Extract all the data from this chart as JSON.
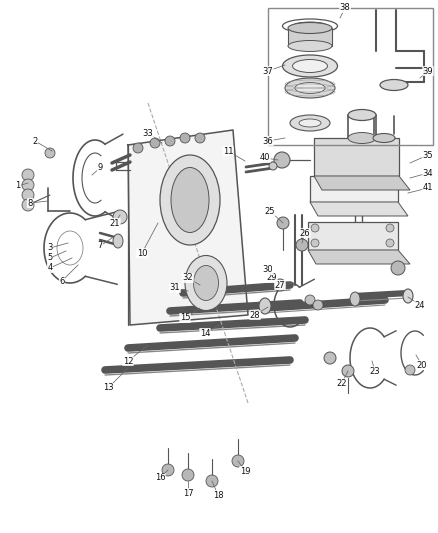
{
  "bg_color": "#ffffff",
  "fig_width": 4.38,
  "fig_height": 5.33,
  "dpi": 100,
  "lc": "#555555",
  "tc": "#111111",
  "fs": 6.0
}
